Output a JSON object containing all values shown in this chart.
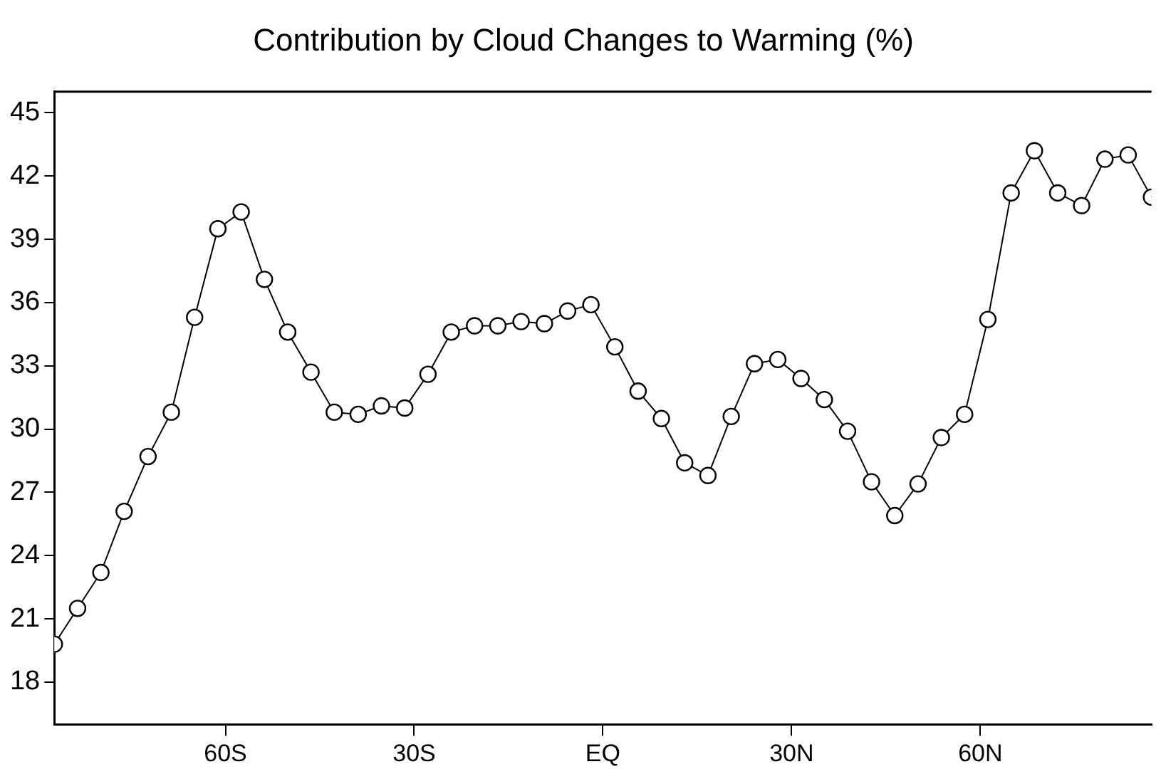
{
  "chart_data": {
    "type": "line",
    "title": "Contribution by Cloud Changes to Warming (%)",
    "x": [
      -87.2,
      -83.5,
      -79.8,
      -76.1,
      -72.3,
      -68.6,
      -64.9,
      -61.2,
      -57.5,
      -53.8,
      -50.1,
      -46.4,
      -42.7,
      -38.9,
      -35.2,
      -31.5,
      -27.8,
      -24.1,
      -20.4,
      -16.7,
      -13.0,
      -9.3,
      -5.6,
      -1.9,
      1.9,
      5.6,
      9.3,
      13.0,
      16.7,
      20.4,
      24.1,
      27.8,
      31.5,
      35.2,
      38.9,
      42.7,
      46.4,
      50.1,
      53.8,
      57.5,
      61.2,
      64.9,
      68.6,
      72.3,
      76.1,
      79.8,
      83.5,
      87.2
    ],
    "series": [
      {
        "color": "#000000",
        "values": [
          19.8,
          21.5,
          23.2,
          26.1,
          28.7,
          30.8,
          35.3,
          39.5,
          40.3,
          37.1,
          34.6,
          32.7,
          30.8,
          30.7,
          31.1,
          31.0,
          32.6,
          34.6,
          34.9,
          34.9,
          35.1,
          35.0,
          35.6,
          35.9,
          33.9,
          31.8,
          30.5,
          28.4,
          27.8,
          30.6,
          33.1,
          33.3,
          32.4,
          31.4,
          29.9,
          27.5,
          25.9,
          27.4,
          29.6,
          30.7,
          35.2,
          41.2,
          43.2,
          41.2,
          40.6,
          42.8,
          43.0,
          41.0
        ]
      }
    ],
    "xlim": [
      -87.2,
      87.2
    ],
    "xticks": [
      {
        "value": -60,
        "label": "60S"
      },
      {
        "value": -30,
        "label": "30S"
      },
      {
        "value": 0,
        "label": "EQ"
      },
      {
        "value": 30,
        "label": "30N"
      },
      {
        "value": 60,
        "label": "60N"
      }
    ],
    "ylim": [
      16,
      46
    ],
    "yticks": [
      18,
      21,
      24,
      27,
      30,
      33,
      36,
      39,
      42,
      45
    ],
    "marker": "circle",
    "grid": false,
    "legend": false
  }
}
